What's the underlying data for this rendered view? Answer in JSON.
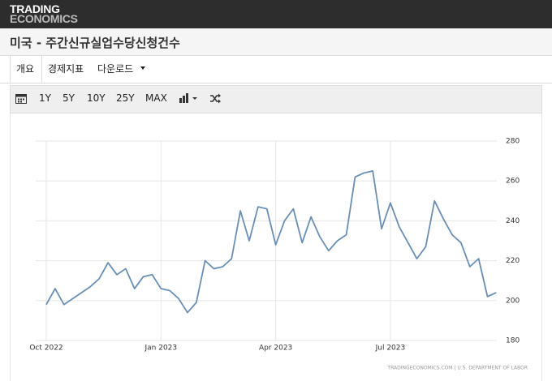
{
  "header": {
    "logo_line1": "TRADING",
    "logo_line2": "ECONOMICS"
  },
  "page_title": "미국 - 주간신규실업수당신청건수",
  "tabs": [
    "개요",
    "경제지표",
    "다운로드"
  ],
  "toolbar": {
    "ranges": [
      "1Y",
      "5Y",
      "10Y",
      "25Y",
      "MAX"
    ]
  },
  "chart_data": {
    "type": "line",
    "categories": [
      "Oct 2022",
      null,
      null,
      null,
      null,
      null,
      null,
      null,
      null,
      null,
      null,
      null,
      null,
      "Jan 2023",
      null,
      null,
      null,
      null,
      null,
      null,
      null,
      null,
      null,
      null,
      null,
      null,
      "Apr 2023",
      null,
      null,
      null,
      null,
      null,
      null,
      null,
      null,
      null,
      null,
      null,
      null,
      "Jul 2023",
      null,
      null,
      null,
      null,
      null,
      null,
      null,
      null,
      null,
      null,
      null,
      null
    ],
    "values": [
      198,
      206,
      198,
      201,
      204,
      207,
      211,
      219,
      213,
      216,
      206,
      212,
      213,
      206,
      205,
      201,
      194,
      199,
      220,
      216,
      217,
      221,
      245,
      230,
      247,
      246,
      228,
      240,
      246,
      229,
      242,
      232,
      225,
      230,
      233,
      262,
      264,
      265,
      236,
      249,
      237,
      229,
      221,
      227,
      250,
      241,
      233,
      229,
      217,
      221,
      202,
      204
    ],
    "color": "#6a8fb5",
    "ylim": [
      180,
      280
    ],
    "yticks": [
      180,
      200,
      220,
      240,
      260,
      280
    ],
    "grid": true,
    "source": "TRADINGECONOMICS.COM | U.S. DEPARTMENT OF LABOR"
  }
}
